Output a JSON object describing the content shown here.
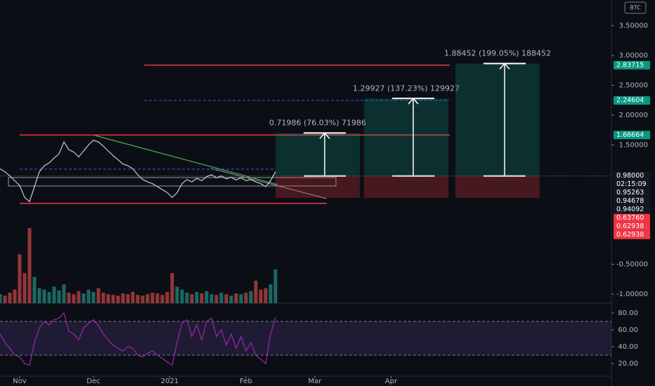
{
  "chart_data": [
    {
      "type": "line",
      "symbol": "BTC",
      "color": "#c9ccd4",
      "x": [
        -8,
        -6,
        -4,
        -2,
        0,
        2,
        4,
        6,
        8,
        10,
        12,
        14,
        16,
        18,
        20,
        22,
        24,
        26,
        28,
        30,
        32,
        34,
        36,
        38,
        40,
        42,
        44,
        46,
        48,
        50,
        52,
        54,
        56,
        58,
        60,
        62,
        64,
        66,
        68,
        70,
        72,
        74,
        76,
        78,
        80,
        82,
        84,
        86,
        88,
        90,
        92,
        94,
        96,
        98,
        100,
        102,
        104
      ],
      "values": [
        1.1,
        1.05,
        0.98,
        0.9,
        0.82,
        0.62,
        0.55,
        0.8,
        1.05,
        1.15,
        1.2,
        1.28,
        1.35,
        1.55,
        1.42,
        1.38,
        1.3,
        1.4,
        1.5,
        1.58,
        1.55,
        1.48,
        1.4,
        1.32,
        1.25,
        1.18,
        1.15,
        1.1,
        1.0,
        0.92,
        0.88,
        0.85,
        0.8,
        0.75,
        0.7,
        0.62,
        0.7,
        0.85,
        0.92,
        0.88,
        0.94,
        0.9,
        0.97,
        1.0,
        0.95,
        0.98,
        0.93,
        0.96,
        0.91,
        0.95,
        0.9,
        0.92,
        0.88,
        0.85,
        0.8,
        0.9,
        1.05
      ],
      "xlim": [
        -8,
        240.6
      ],
      "xticks": [
        {
          "value": 0,
          "label": "Nov"
        },
        {
          "value": 30,
          "label": "Dec"
        },
        {
          "value": 61,
          "label": "2021"
        },
        {
          "value": 92,
          "label": "Feb"
        },
        {
          "value": 120,
          "label": "Mar"
        },
        {
          "value": 151,
          "label": "Apr"
        }
      ],
      "ylim": [
        -1.13,
        3.93
      ],
      "yticks": [
        {
          "value": 3.5,
          "label": "3.50000"
        },
        {
          "value": 3,
          "label": "3.00000"
        },
        {
          "value": 2.5,
          "label": "2.50000"
        },
        {
          "value": 2,
          "label": "2.00000"
        },
        {
          "value": 1.5,
          "label": "1.50000"
        },
        {
          "value": -0.5,
          "label": "-0.50000"
        },
        {
          "value": -1,
          "label": "-1.00000"
        }
      ],
      "levels": [
        {
          "value": 2.83715,
          "color": "#f23645",
          "style": "solid"
        },
        {
          "value": 2.24604,
          "color": "#2962ff",
          "style": "dashed"
        },
        {
          "value": 1.66664,
          "color": "#f23645",
          "style": "solid"
        },
        {
          "value": 1.094,
          "color": "#2962ff",
          "style": "dashed"
        },
        {
          "value": 0.52,
          "color": "#f23645",
          "style": "solid"
        }
      ],
      "positions": [
        {
          "entry": 0.98,
          "stop": 0.612,
          "target": 1.69986,
          "label": "0.71986 (76.03%) 71986"
        },
        {
          "entry": 0.98,
          "stop": 0.612,
          "target": 2.27927,
          "label": "1.29927 (137.23%) 129927"
        },
        {
          "entry": 0.98,
          "stop": 0.612,
          "target": 2.86452,
          "label": "1.88452 (199.05%) 188452"
        }
      ],
      "price_labels": [
        {
          "value": 2.83715,
          "label": "2.83715",
          "color": "#089981"
        },
        {
          "value": 2.24604,
          "label": "2.24604",
          "color": "#089981"
        },
        {
          "value": 1.66664,
          "label": "1.66664",
          "color": "#089981"
        },
        {
          "value": 0.98,
          "label": "0.98000",
          "color": "#131722"
        },
        {
          "label": "02:15:09",
          "color": "#131722"
        },
        {
          "value": 0.95263,
          "label": "0.95263",
          "color": "#131722"
        },
        {
          "value": 0.94678,
          "label": "0.94678",
          "color": "#131722"
        },
        {
          "value": 0.94092,
          "label": "0.94092",
          "color": "#131722"
        },
        {
          "value": 0.6376,
          "label": "0.63760",
          "color": "#f23645"
        },
        {
          "value": 0.62938,
          "label": "0.62938",
          "color": "#f23645"
        },
        {
          "value": 0.62938,
          "label": "0.62938",
          "color": "#f23645"
        }
      ]
    },
    {
      "type": "bar",
      "color": "#26a69a",
      "ylim": [
        0,
        100
      ],
      "values": [
        12,
        10,
        14,
        18,
        65,
        40,
        100,
        35,
        20,
        18,
        15,
        22,
        17,
        25,
        14,
        12,
        16,
        13,
        18,
        15,
        20,
        14,
        12,
        11,
        10,
        13,
        12,
        15,
        11,
        10,
        12,
        14,
        13,
        11,
        15,
        40,
        22,
        18,
        14,
        12,
        15,
        13,
        16,
        12,
        11,
        14,
        12,
        10,
        13,
        12,
        14,
        16,
        30,
        18,
        20,
        25,
        45
      ]
    },
    {
      "type": "line",
      "color": "#9c27b0",
      "ylim": [
        5.8,
        91.7
      ],
      "yticks": [
        {
          "value": 80,
          "label": "80.00"
        },
        {
          "value": 60,
          "label": "60.00"
        },
        {
          "value": 40,
          "label": "40.00"
        },
        {
          "value": 20,
          "label": "20.00"
        }
      ],
      "bands": [
        70,
        30
      ],
      "values": [
        55,
        45,
        38,
        30,
        28,
        20,
        18,
        45,
        62,
        70,
        66,
        72,
        74,
        80,
        58,
        55,
        48,
        62,
        68,
        72,
        65,
        55,
        48,
        42,
        38,
        35,
        40,
        38,
        30,
        28,
        32,
        35,
        30,
        26,
        22,
        18,
        45,
        68,
        72,
        52,
        66,
        48,
        70,
        74,
        52,
        60,
        42,
        55,
        38,
        52,
        35,
        45,
        30,
        25,
        20,
        55,
        75
      ]
    }
  ]
}
